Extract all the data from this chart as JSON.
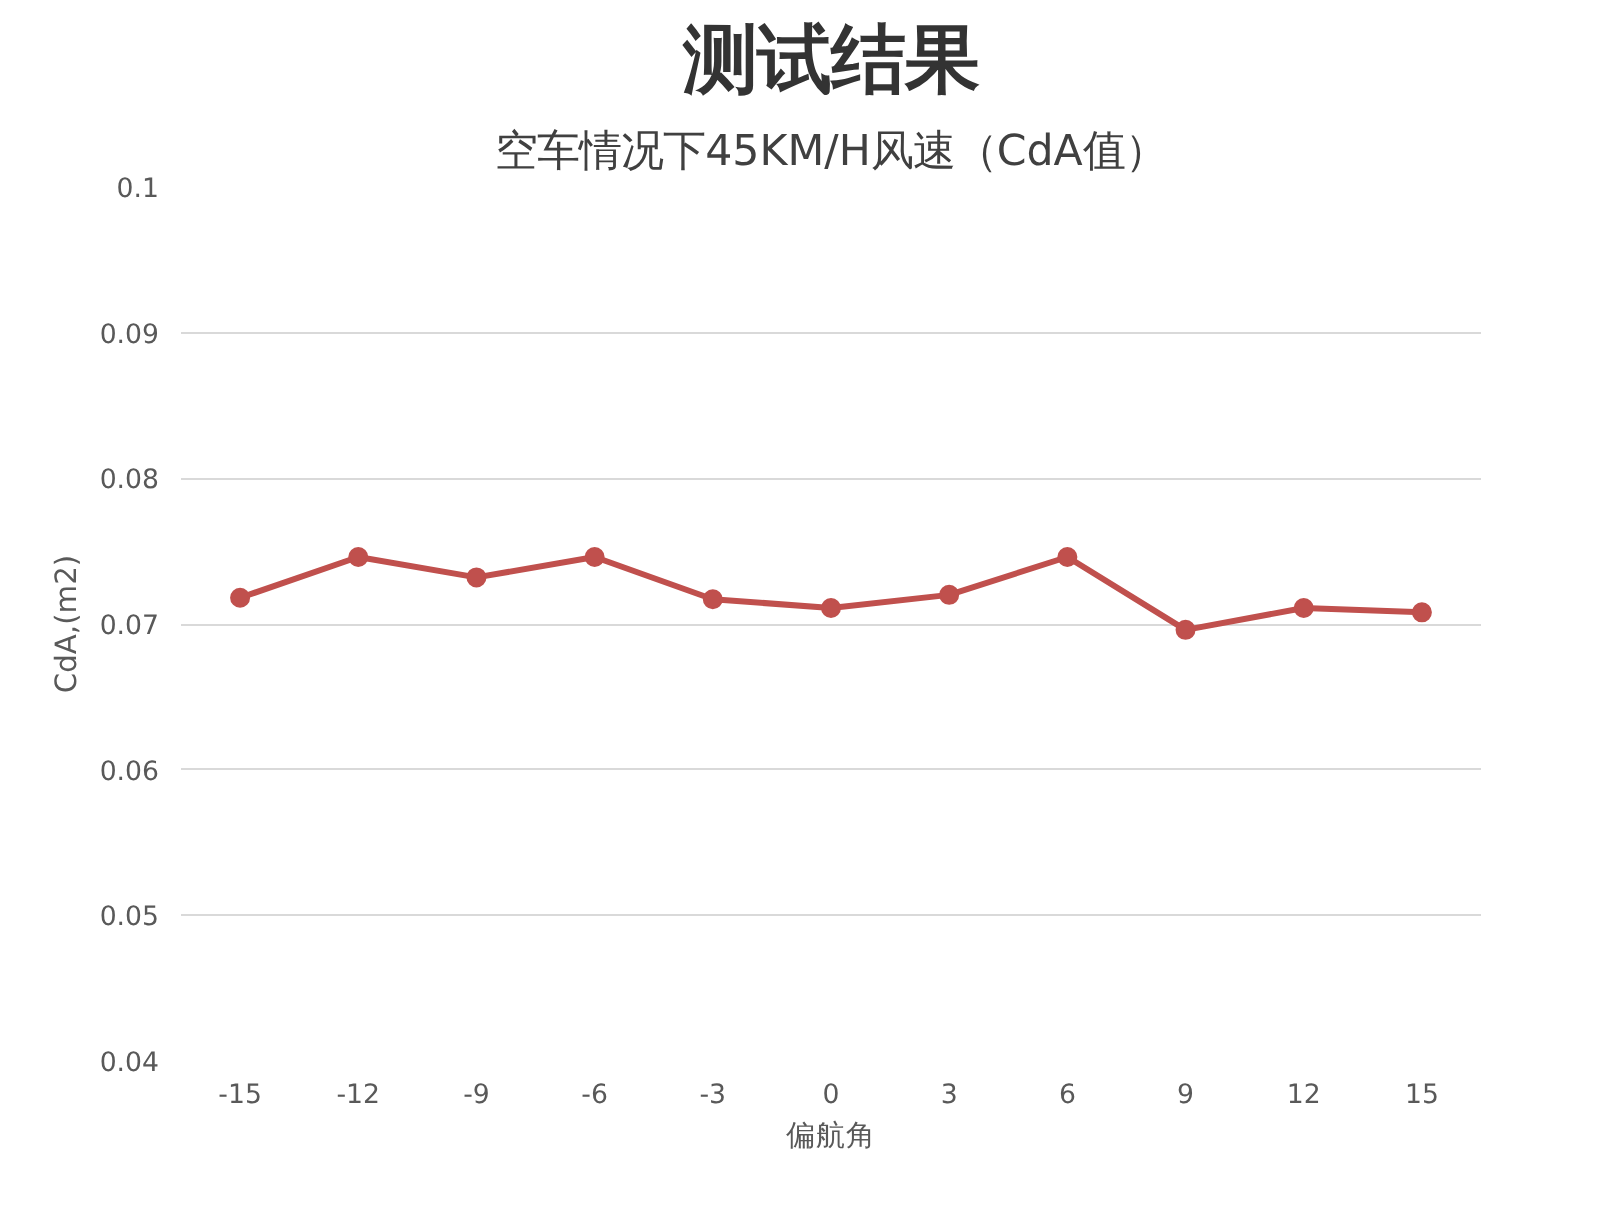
{
  "chart_data": {
    "type": "line",
    "title": "测试结果",
    "subtitle": "空车情况下45KM/H风速（CdA值）",
    "xlabel": "偏航角",
    "ylabel": "CdA,(m2)",
    "categories": [
      "-15",
      "-12",
      "-9",
      "-6",
      "-3",
      "0",
      "3",
      "6",
      "9",
      "12",
      "15"
    ],
    "series": [
      {
        "color": "#c0504d",
        "values": [
          0.0718,
          0.0746,
          0.0732,
          0.0746,
          0.0717,
          0.0711,
          0.072,
          0.0746,
          0.0696,
          0.0711,
          0.0708
        ]
      }
    ],
    "ylim": [
      0.04,
      0.1
    ],
    "yticks": [
      0.04,
      0.05,
      0.06,
      0.07,
      0.08,
      0.09,
      0.1
    ],
    "grid": "y",
    "marker": "circle",
    "line_style": "solid"
  }
}
